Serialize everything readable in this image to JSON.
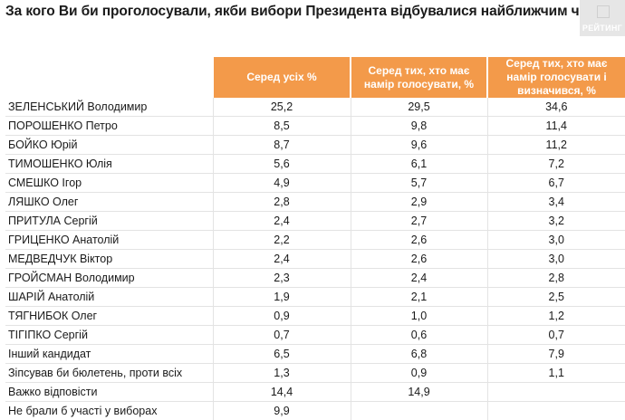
{
  "header": {
    "title": "За кого Ви би проголосували, якби вибори Президента відбувалися найближчим часом?",
    "logo_text": "РЕЙТИНГ"
  },
  "chart_data": {
    "type": "table",
    "title": "За кого Ви би проголосували, якби вибори Президента відбувалися найближчим часом?",
    "columns": [
      "Серед усіх %",
      "Серед тих, хто має намір голосувати, %",
      "Серед тих, хто має намір голосувати і визначився, %"
    ],
    "rows": [
      {
        "label": "ЗЕЛЕНСЬКИЙ Володимир",
        "values": [
          "25,2",
          "29,5",
          "34,6"
        ]
      },
      {
        "label": "ПОРОШЕНКО Петро",
        "values": [
          "8,5",
          "9,8",
          "11,4"
        ]
      },
      {
        "label": "БОЙКО Юрій",
        "values": [
          "8,7",
          "9,6",
          "11,2"
        ]
      },
      {
        "label": "ТИМОШЕНКО Юлія",
        "values": [
          "5,6",
          "6,1",
          "7,2"
        ]
      },
      {
        "label": "СМЕШКО Ігор",
        "values": [
          "4,9",
          "5,7",
          "6,7"
        ]
      },
      {
        "label": "ЛЯШКО Олег",
        "values": [
          "2,8",
          "2,9",
          "3,4"
        ]
      },
      {
        "label": "ПРИТУЛА Сергій",
        "values": [
          "2,4",
          "2,7",
          "3,2"
        ]
      },
      {
        "label": "ГРИЦЕНКО Анатолій",
        "values": [
          "2,2",
          "2,6",
          "3,0"
        ]
      },
      {
        "label": "МЕДВЕДЧУК Віктор",
        "values": [
          "2,4",
          "2,6",
          "3,0"
        ]
      },
      {
        "label": "ГРОЙСМАН Володимир",
        "values": [
          "2,3",
          "2,4",
          "2,8"
        ]
      },
      {
        "label": "ШАРІЙ Анатолій",
        "values": [
          "1,9",
          "2,1",
          "2,5"
        ]
      },
      {
        "label": "ТЯГНИБОК Олег",
        "values": [
          "0,9",
          "1,0",
          "1,2"
        ]
      },
      {
        "label": "ТІГІПКО Сергій",
        "values": [
          "0,7",
          "0,6",
          "0,7"
        ]
      },
      {
        "label": "Інший кандидат",
        "values": [
          "6,5",
          "6,8",
          "7,9"
        ]
      },
      {
        "label": "Зіпсував би бюлетень, проти всіх",
        "values": [
          "1,3",
          "0,9",
          "1,1"
        ]
      },
      {
        "label": "Важко відповісти",
        "values": [
          "14,4",
          "14,9",
          ""
        ]
      },
      {
        "label": "Не брали б участі у виборах",
        "values": [
          "9,9",
          "",
          ""
        ]
      }
    ]
  }
}
